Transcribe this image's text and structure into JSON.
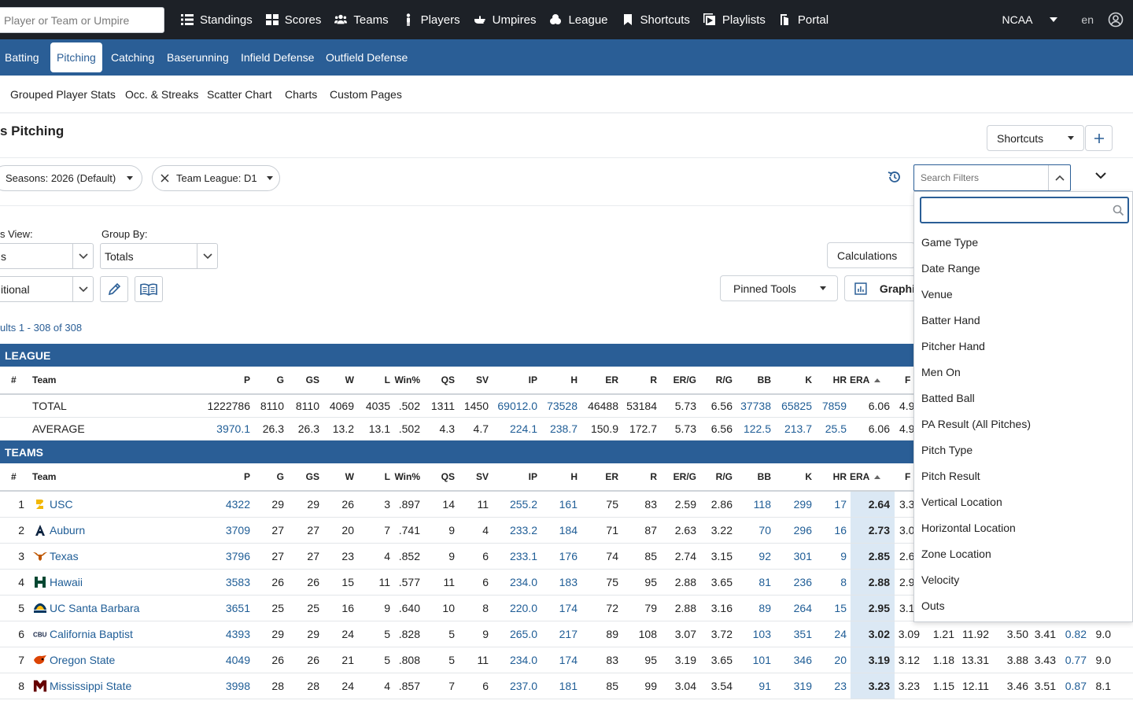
{
  "top_nav": {
    "search_placeholder": "Player or Team or Umpire",
    "items": [
      {
        "label": "Standings",
        "icon": "list-icon"
      },
      {
        "label": "Scores",
        "icon": "grid-icon"
      },
      {
        "label": "Teams",
        "icon": "users-icon"
      },
      {
        "label": "Players",
        "icon": "person-icon"
      },
      {
        "label": "Umpires",
        "icon": "hand-icon"
      },
      {
        "label": "League",
        "icon": "layers-icon"
      },
      {
        "label": "Shortcuts",
        "icon": "bookmark-icon"
      },
      {
        "label": "Playlists",
        "icon": "playlist-icon"
      },
      {
        "label": "Portal",
        "icon": "portal-icon"
      }
    ],
    "org": "NCAA",
    "lang": "en"
  },
  "tabs": [
    "Batting",
    "Pitching",
    "Catching",
    "Baserunning",
    "Infield Defense",
    "Outfield Defense"
  ],
  "active_tab": "Pitching",
  "subnav": [
    "Grouped Player Stats",
    "Occ. & Streaks",
    "Scatter Chart",
    "Charts",
    "Custom Pages"
  ],
  "page_title": "s Pitching",
  "shortcuts_label": "Shortcuts",
  "filters": {
    "season_chip": "Seasons: 2026 (Default)",
    "league_chip": "Team League: D1",
    "search_filters_placeholder": "Search Filters"
  },
  "controls": {
    "view_label": "s View:",
    "view_value": "s",
    "groupby_label": "Group By:",
    "groupby_value": "Totals",
    "second_value": "itional",
    "calculations": "Calculations",
    "pinned_tools": "Pinned Tools",
    "graphics": "Graphi"
  },
  "results_text": "ults 1 - 308 of 308",
  "table": {
    "league_title": "LEAGUE",
    "teams_title": "TEAMS",
    "columns": [
      "#",
      "Team",
      "P",
      "G",
      "GS",
      "W",
      "L",
      "Win%",
      "QS",
      "SV",
      "IP",
      "H",
      "ER",
      "R",
      "ER/G",
      "R/G",
      "BB",
      "K",
      "HR",
      "ERA",
      "F"
    ],
    "league_rows": [
      {
        "team": "TOTAL",
        "vals": [
          "1222786",
          "8110",
          "8110",
          "4069",
          "4035",
          ".502",
          "1311",
          "1450",
          "69012.0",
          "73528",
          "46488",
          "53184",
          "5.73",
          "6.56",
          "37738",
          "65825",
          "7859",
          "6.06",
          "4.9"
        ]
      },
      {
        "team": "AVERAGE",
        "vals": [
          "3970.1",
          "26.3",
          "26.3",
          "13.2",
          "13.1",
          ".502",
          "4.3",
          "4.7",
          "224.1",
          "238.7",
          "150.9",
          "172.7",
          "5.73",
          "6.56",
          "122.5",
          "213.7",
          "25.5",
          "6.06",
          "4.9"
        ]
      }
    ],
    "team_rows": [
      {
        "rank": "1",
        "team": "USC",
        "logo": "usc-logo",
        "vals": [
          "4322",
          "29",
          "29",
          "26",
          "3",
          ".897",
          "14",
          "11",
          "255.2",
          "161",
          "75",
          "83",
          "2.59",
          "2.86",
          "118",
          "299",
          "17",
          "2.64"
        ],
        "extra": [
          "3.3"
        ]
      },
      {
        "rank": "2",
        "team": "Auburn",
        "logo": "auburn-logo",
        "vals": [
          "3709",
          "27",
          "27",
          "20",
          "7",
          ".741",
          "9",
          "4",
          "233.2",
          "184",
          "71",
          "87",
          "2.63",
          "3.22",
          "70",
          "296",
          "16",
          "2.73"
        ],
        "extra": [
          "3.0"
        ]
      },
      {
        "rank": "3",
        "team": "Texas",
        "logo": "texas-logo",
        "vals": [
          "3796",
          "27",
          "27",
          "23",
          "4",
          ".852",
          "9",
          "6",
          "233.1",
          "176",
          "74",
          "85",
          "2.74",
          "3.15",
          "92",
          "301",
          "9",
          "2.85"
        ],
        "extra": [
          "2.6"
        ]
      },
      {
        "rank": "4",
        "team": "Hawaii",
        "logo": "hawaii-logo",
        "vals": [
          "3583",
          "26",
          "26",
          "15",
          "11",
          ".577",
          "11",
          "6",
          "234.0",
          "183",
          "75",
          "95",
          "2.88",
          "3.65",
          "81",
          "236",
          "8",
          "2.88"
        ],
        "extra": [
          "2.9"
        ]
      },
      {
        "rank": "5",
        "team": "UC Santa Barbara",
        "logo": "ucsb-logo",
        "vals": [
          "3651",
          "25",
          "25",
          "16",
          "9",
          ".640",
          "10",
          "8",
          "220.0",
          "174",
          "72",
          "79",
          "2.88",
          "3.16",
          "89",
          "264",
          "15",
          "2.95"
        ],
        "extra": [
          "3.1"
        ]
      },
      {
        "rank": "6",
        "team": "California Baptist",
        "logo": "cbu-logo",
        "vals": [
          "4393",
          "29",
          "29",
          "24",
          "5",
          ".828",
          "5",
          "9",
          "265.0",
          "217",
          "89",
          "108",
          "3.07",
          "3.72",
          "103",
          "351",
          "24",
          "3.02"
        ],
        "extra": [
          "3.09",
          "1.21",
          "11.92",
          "3.50",
          "3.41",
          "0.82",
          "9.0"
        ]
      },
      {
        "rank": "7",
        "team": "Oregon State",
        "logo": "oregon-state-logo",
        "vals": [
          "4049",
          "26",
          "26",
          "21",
          "5",
          ".808",
          "5",
          "11",
          "234.0",
          "174",
          "83",
          "95",
          "3.19",
          "3.65",
          "101",
          "346",
          "20",
          "3.19"
        ],
        "extra": [
          "3.12",
          "1.18",
          "13.31",
          "3.88",
          "3.43",
          "0.77",
          "9.0"
        ]
      },
      {
        "rank": "8",
        "team": "Mississippi State",
        "logo": "mississippi-state-logo",
        "vals": [
          "3998",
          "28",
          "28",
          "24",
          "4",
          ".857",
          "7",
          "6",
          "237.0",
          "181",
          "85",
          "99",
          "3.04",
          "3.54",
          "91",
          "319",
          "23",
          "3.23"
        ],
        "extra": [
          "3.23",
          "1.15",
          "12.11",
          "3.46",
          "3.51",
          "0.87",
          "8.1"
        ]
      }
    ]
  },
  "filter_dropdown": [
    "Game Type",
    "Date Range",
    "Venue",
    "Batter Hand",
    "Pitcher Hand",
    "Men On",
    "Batted Ball",
    "PA Result (All Pitches)",
    "Pitch Type",
    "Pitch Result",
    "Vertical Location",
    "Horizontal Location",
    "Zone Location",
    "Velocity",
    "Outs"
  ],
  "colors": {
    "nav_bg": "#1d2127",
    "accent": "#2a5e96",
    "link": "#1f5d96",
    "era_highlight": "#dbe8f4"
  }
}
